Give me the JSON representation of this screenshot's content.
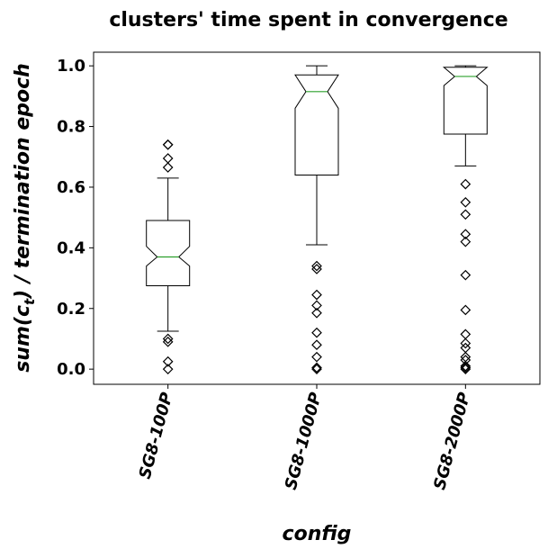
{
  "chart_data": {
    "type": "boxplot",
    "title": "clusters' time spent in convergence",
    "xlabel": "config",
    "ylabel": "sum(c",
    "ylabel_subscript": "t",
    "ylabel_suffix": ") / termination epoch",
    "ylim": [
      -0.05,
      1.045
    ],
    "yticks": [
      0.0,
      0.2,
      0.4,
      0.6,
      0.8,
      1.0
    ],
    "ytick_labels": [
      "0.0",
      "0.2",
      "0.4",
      "0.6",
      "0.8",
      "1.0"
    ],
    "grid": false,
    "notched": true,
    "categories": [
      "SG8-100P",
      "SG8-1000P",
      "SG8-2000P"
    ],
    "boxes": [
      {
        "label": "SG8-100P",
        "whisker_low": 0.125,
        "q1": 0.275,
        "median": 0.37,
        "q3": 0.49,
        "whisker_high": 0.63,
        "notch_low": 0.34,
        "notch_high": 0.405,
        "fliers": [
          0.74,
          0.74,
          0.695,
          0.665,
          0.1,
          0.09,
          0.025,
          0.0
        ]
      },
      {
        "label": "SG8-1000P",
        "whisker_low": 0.41,
        "q1": 0.64,
        "median": 0.915,
        "q3": 0.97,
        "whisker_high": 1.0,
        "notch_low": 0.86,
        "notch_high": 0.97,
        "fliers": [
          0.34,
          0.33,
          0.245,
          0.21,
          0.185,
          0.12,
          0.08,
          0.04,
          0.005,
          0.0
        ]
      },
      {
        "label": "SG8-2000P",
        "whisker_low": 0.67,
        "q1": 0.775,
        "median": 0.965,
        "q3": 0.995,
        "whisker_high": 1.0,
        "notch_low": 0.935,
        "notch_high": 0.995,
        "fliers": [
          0.61,
          0.55,
          0.51,
          0.445,
          0.42,
          0.31,
          0.195,
          0.115,
          0.085,
          0.07,
          0.04,
          0.03,
          0.01,
          0.005,
          0.0
        ]
      }
    ],
    "colors": {
      "box": "#000000",
      "median": "#2ca02c",
      "flier": "#000000"
    }
  }
}
